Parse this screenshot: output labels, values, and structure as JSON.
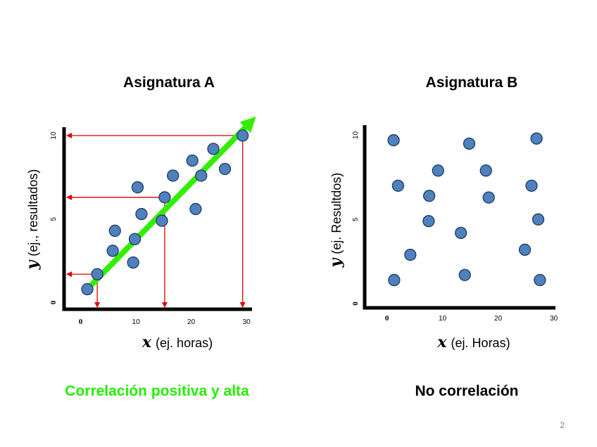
{
  "page": {
    "number": "2"
  },
  "chart_data": [
    {
      "type": "scatter",
      "title": "Asignatura A",
      "xlabel_var": "x",
      "xlabel_text": "(ej. horas)",
      "ylabel_var": "y",
      "ylabel_text": "(ej., resultados)",
      "xlim": [
        -3,
        31
      ],
      "ylim": [
        -0.4,
        10.5
      ],
      "x_ticks": [
        "0",
        "10",
        "20",
        "30"
      ],
      "x_tick_values": [
        0,
        10,
        20,
        30
      ],
      "y_ticks": [
        "0",
        "5",
        "10"
      ],
      "y_tick_values": [
        0,
        5,
        10
      ],
      "points": [
        {
          "x": 1.2,
          "y": 0.8
        },
        {
          "x": 3,
          "y": 1.7
        },
        {
          "x": 6.2,
          "y": 4.3
        },
        {
          "x": 5.8,
          "y": 3.1
        },
        {
          "x": 9.5,
          "y": 2.4
        },
        {
          "x": 9.8,
          "y": 3.8
        },
        {
          "x": 10.3,
          "y": 6.9
        },
        {
          "x": 11,
          "y": 5.3
        },
        {
          "x": 14.7,
          "y": 4.9
        },
        {
          "x": 15.2,
          "y": 6.3
        },
        {
          "x": 16.7,
          "y": 7.6
        },
        {
          "x": 20.2,
          "y": 8.5
        },
        {
          "x": 20.8,
          "y": 5.6
        },
        {
          "x": 21.8,
          "y": 7.6
        },
        {
          "x": 24,
          "y": 9.2
        },
        {
          "x": 26.1,
          "y": 8
        },
        {
          "x": 29.3,
          "y": 10
        }
      ],
      "trend": {
        "from": [
          1.2,
          0.8
        ],
        "to": [
          31,
          10.9
        ],
        "color": "#33ee00"
      },
      "guides": [
        {
          "x": 3,
          "y": 1.7
        },
        {
          "x": 15.2,
          "y": 6.3
        },
        {
          "x": 29.3,
          "y": 10
        }
      ],
      "colors": {
        "point_fill": "#4f81bd",
        "point_stroke": "#1f3a5f",
        "guide": "#e00000"
      },
      "caption": "Correlación positiva y alta",
      "caption_color": "#22ee00"
    },
    {
      "type": "scatter",
      "title": "Asignatura B",
      "xlabel_var": "x",
      "xlabel_text": "(ej. Horas)",
      "ylabel_var": "y",
      "ylabel_text": "(ej. Resultdos)",
      "xlim": [
        -4,
        30.3
      ],
      "ylim": [
        -0.25,
        10.6
      ],
      "x_ticks": [
        "0",
        "10",
        "20",
        "30"
      ],
      "x_tick_values": [
        0,
        10,
        20,
        30
      ],
      "y_ticks": [
        "0",
        "5",
        "10"
      ],
      "y_tick_values": [
        0,
        5,
        10
      ],
      "points": [
        {
          "x": 1.2,
          "y": 9.7
        },
        {
          "x": 2,
          "y": 7
        },
        {
          "x": 4.2,
          "y": 2.9
        },
        {
          "x": 1.3,
          "y": 1.4
        },
        {
          "x": 7.6,
          "y": 6.4
        },
        {
          "x": 7.5,
          "y": 4.9
        },
        {
          "x": 9.2,
          "y": 7.9
        },
        {
          "x": 14.8,
          "y": 9.5
        },
        {
          "x": 13.3,
          "y": 4.2
        },
        {
          "x": 14,
          "y": 1.7
        },
        {
          "x": 17.8,
          "y": 7.9
        },
        {
          "x": 18.3,
          "y": 6.3
        },
        {
          "x": 26.9,
          "y": 9.8
        },
        {
          "x": 26,
          "y": 7
        },
        {
          "x": 27.2,
          "y": 5
        },
        {
          "x": 24.8,
          "y": 3.2
        },
        {
          "x": 27.5,
          "y": 1.4
        }
      ],
      "colors": {
        "point_fill": "#4f81bd",
        "point_stroke": "#1f3a5f"
      },
      "caption": "No correlación",
      "caption_color": "#000000"
    }
  ]
}
